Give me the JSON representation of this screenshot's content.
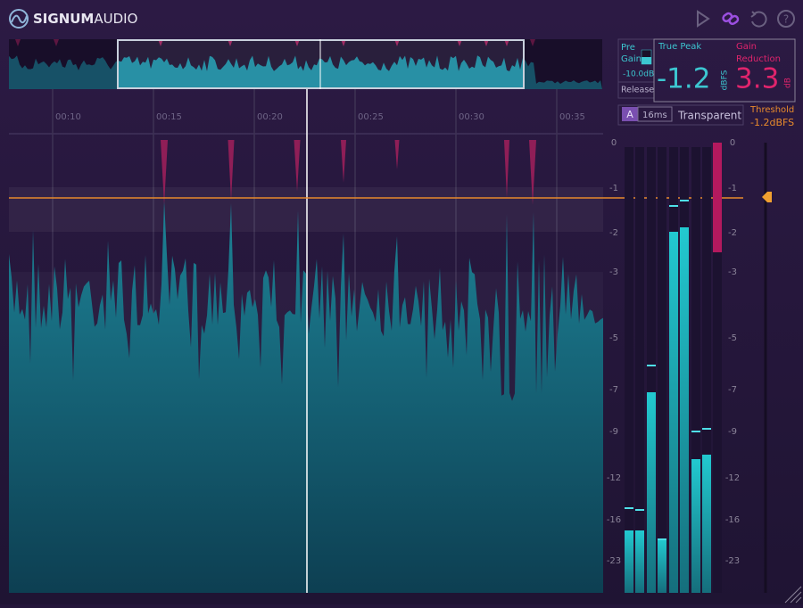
{
  "header": {
    "brand_bold": "SIGNUM",
    "brand_light": "AUDIO"
  },
  "timeline": {
    "labels": [
      "00:10",
      "00:15",
      "00:20",
      "00:25",
      "00:30",
      "00:35"
    ]
  },
  "controls": {
    "pre_gain_label": "Pre Gain",
    "pre_gain_value": "-10.0dB",
    "release_label": "Release",
    "release_mode": "A",
    "release_value": "16ms",
    "character": "Transparent"
  },
  "true_peak": {
    "label": "True Peak",
    "value": "-1.2",
    "unit": "dBFS"
  },
  "gain_reduction": {
    "label": "Gain Reduction",
    "value": "3.3",
    "unit": "dB"
  },
  "threshold": {
    "label": "Threshold",
    "value": "-1.2dBFS"
  },
  "meter_scale": {
    "labels": [
      "0",
      "-1",
      "-2",
      "-3",
      "-5",
      "-7",
      "-9",
      "-12",
      "-16",
      "-23"
    ]
  }
}
